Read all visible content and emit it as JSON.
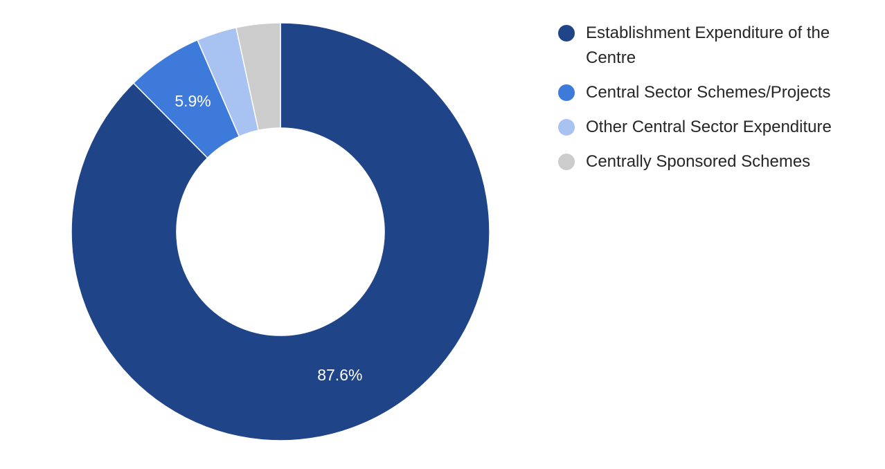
{
  "chart_data": {
    "type": "pie",
    "title": "",
    "categories": [
      "Establishment Expenditure of the Centre",
      "Central Sector Schemes/Projects",
      "Other Central Sector Expenditure",
      "Centrally Sponsored Schemes"
    ],
    "values": [
      87.6,
      5.9,
      3.1,
      3.4
    ],
    "data_labels": [
      "87.6%",
      "5.9%",
      "",
      ""
    ],
    "colors": [
      "#1f4488",
      "#3d7ad9",
      "#a8c3f2",
      "#cccccc"
    ],
    "donut": true,
    "legend_position": "top-right"
  }
}
